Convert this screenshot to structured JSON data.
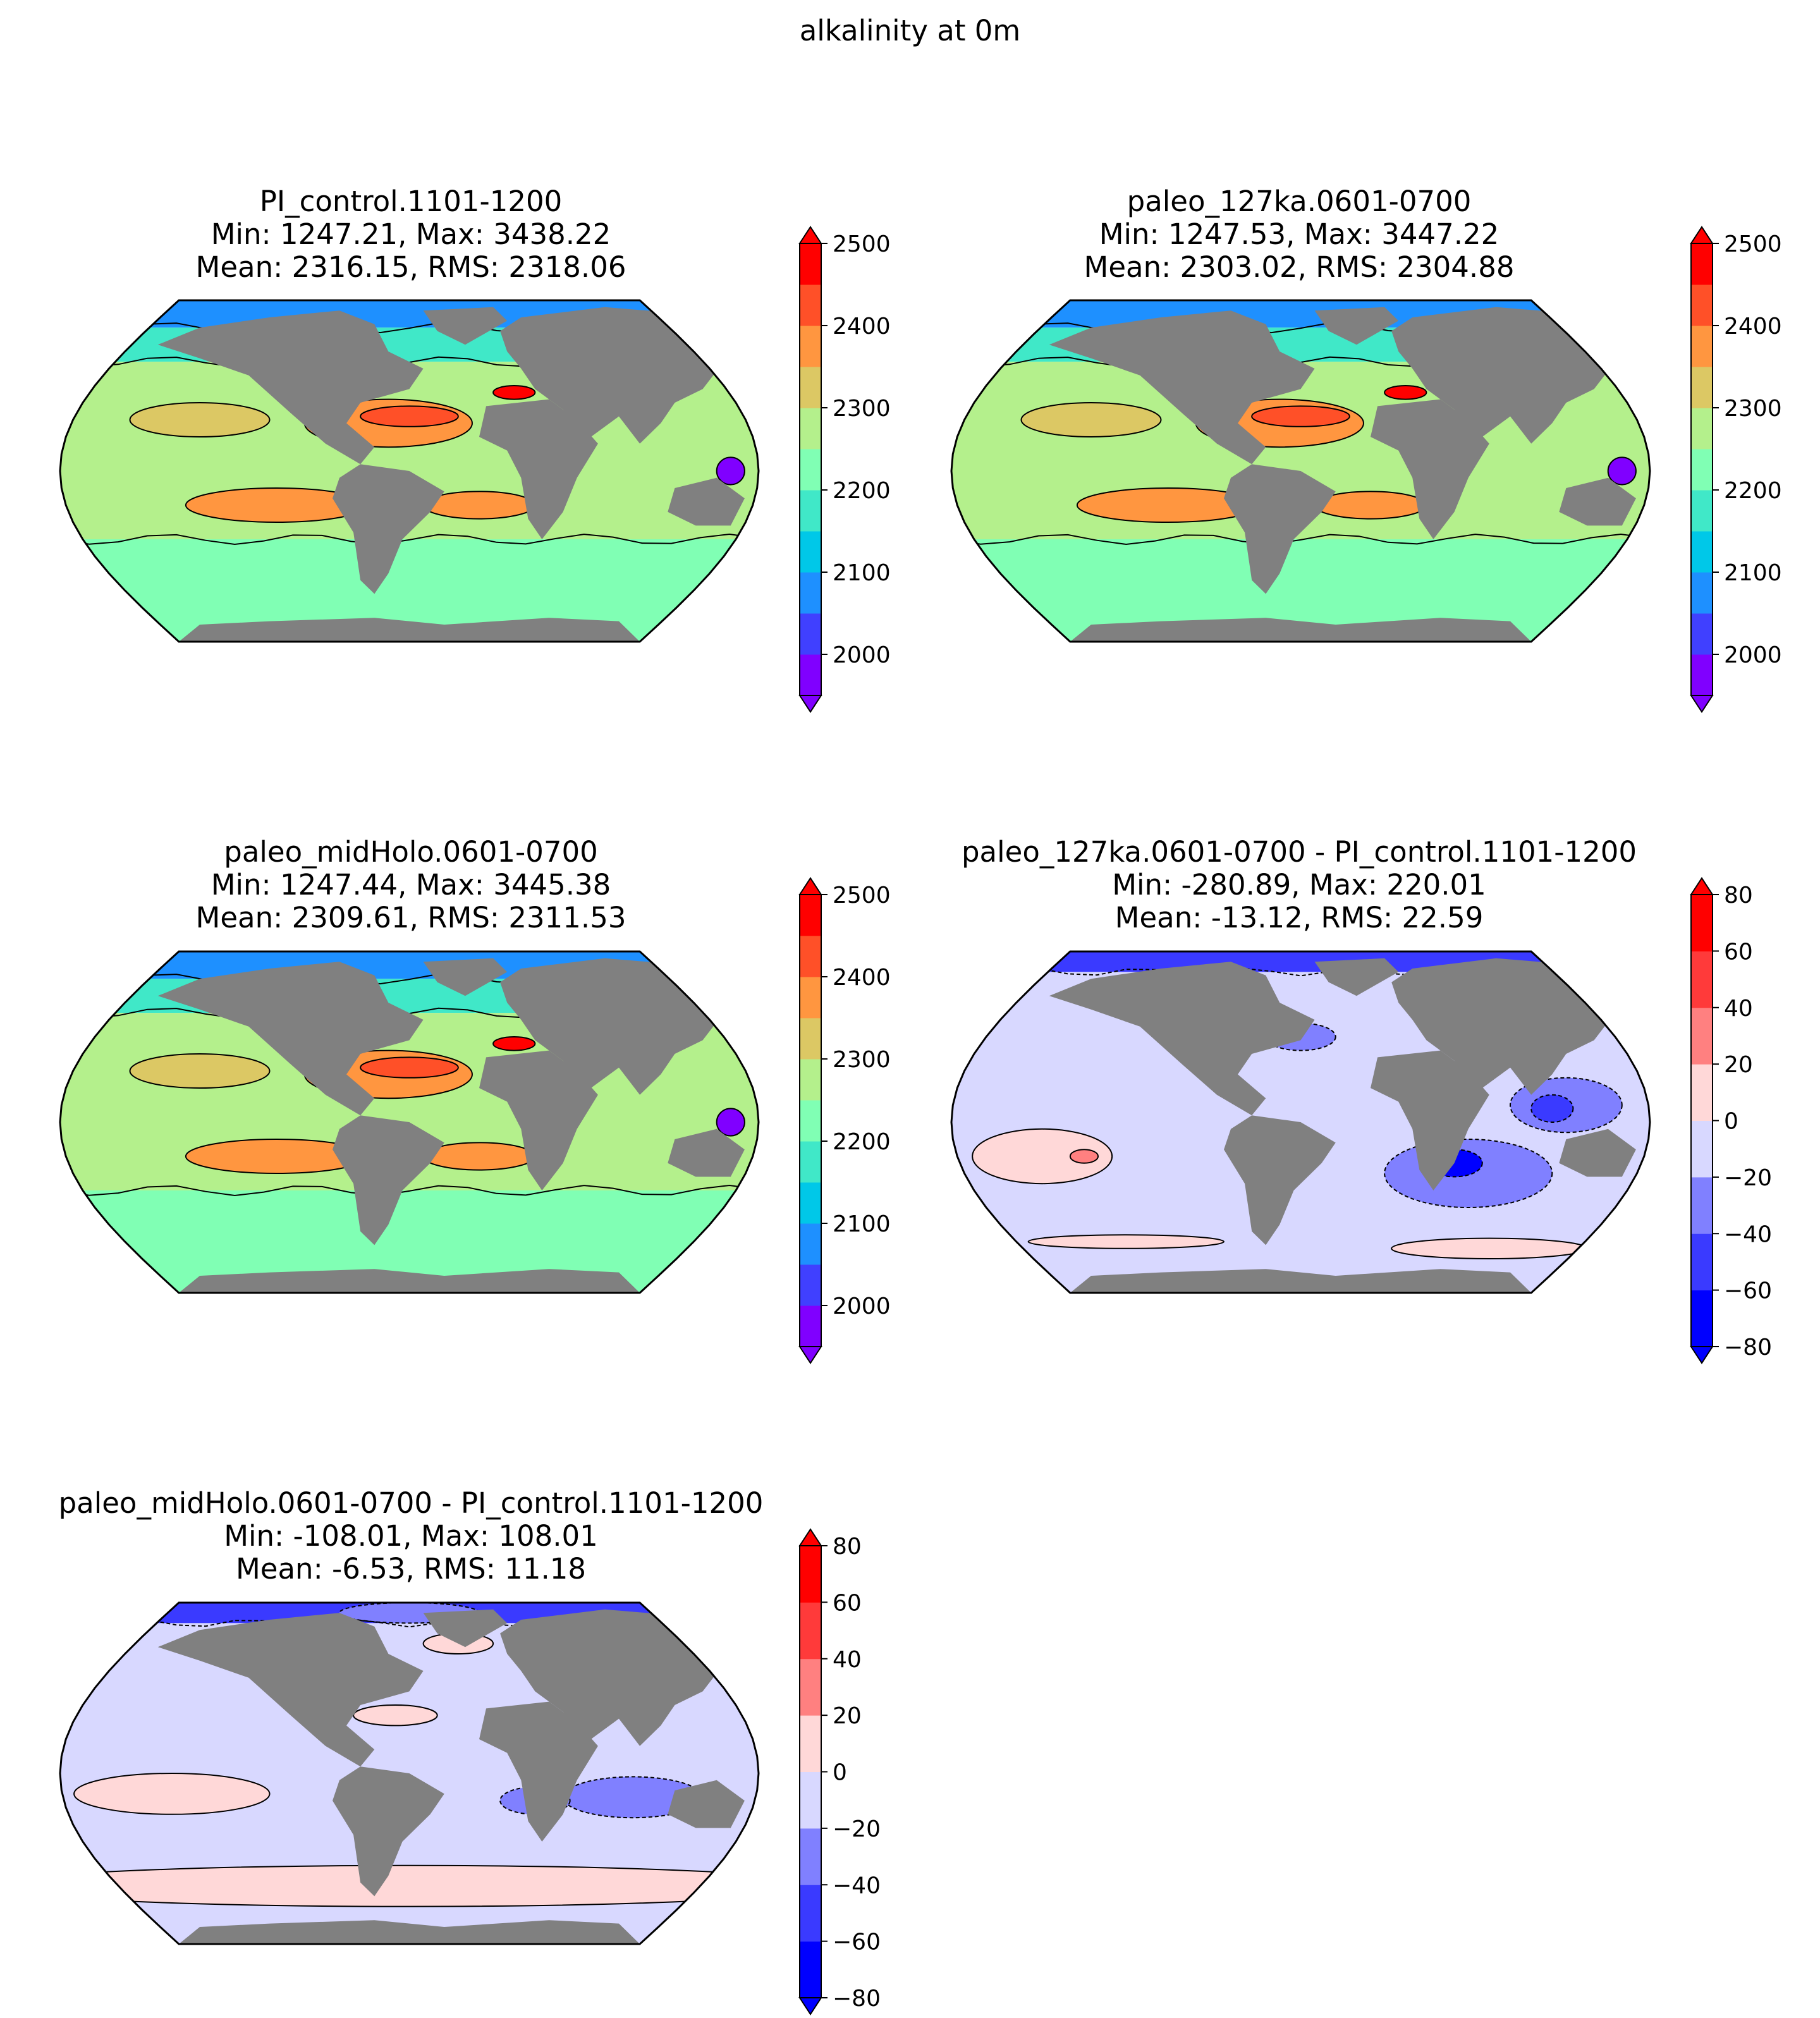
{
  "figure": {
    "suptitle": "alkalinity at 0m"
  },
  "colors": {
    "land": "#808080",
    "abs_levels": [
      "#8000ff",
      "#4040ff",
      "#1e90ff",
      "#00c8e8",
      "#40e8c8",
      "#80ffb4",
      "#b4f08c",
      "#dcc864",
      "#ff9640",
      "#ff5028",
      "#ff0000"
    ],
    "diff_levels": [
      "#0000ff",
      "#3a3aff",
      "#8080ff",
      "#d8d8ff",
      "#ffd8d8",
      "#ff8080",
      "#ff3a3a",
      "#ff0000"
    ]
  },
  "panels": [
    {
      "title": "PI_control.1101-1200",
      "stats_line1": "Min: 1247.21, Max: 3438.22",
      "stats_line2": "Mean: 2316.15, RMS: 2318.06",
      "type": "absolute",
      "colorbar_ticks": [
        "2000",
        "2100",
        "2200",
        "2300",
        "2400",
        "2500"
      ]
    },
    {
      "title": "paleo_127ka.0601-0700",
      "stats_line1": "Min: 1247.53, Max: 3447.22",
      "stats_line2": "Mean: 2303.02, RMS: 2304.88",
      "type": "absolute",
      "colorbar_ticks": [
        "2000",
        "2100",
        "2200",
        "2300",
        "2400",
        "2500"
      ]
    },
    {
      "title": "paleo_midHolo.0601-0700",
      "stats_line1": "Min: 1247.44, Max: 3445.38",
      "stats_line2": "Mean: 2309.61, RMS: 2311.53",
      "type": "absolute",
      "colorbar_ticks": [
        "2000",
        "2100",
        "2200",
        "2300",
        "2400",
        "2500"
      ]
    },
    {
      "title": "paleo_127ka.0601-0700 - PI_control.1101-1200",
      "stats_line1": "Min: -280.89, Max: 220.01",
      "stats_line2": "Mean: -13.12, RMS: 22.59",
      "type": "difference",
      "colorbar_ticks": [
        "−80",
        "−60",
        "−40",
        "−20",
        "0",
        "20",
        "40",
        "60",
        "80"
      ]
    },
    {
      "title": "paleo_midHolo.0601-0700 - PI_control.1101-1200",
      "stats_line1": "Min: -108.01, Max: 108.01",
      "stats_line2": "Mean: -6.53, RMS: 11.18",
      "type": "difference",
      "colorbar_ticks": [
        "−80",
        "−60",
        "−40",
        "−20",
        "0",
        "20",
        "40",
        "60",
        "80"
      ]
    }
  ]
}
